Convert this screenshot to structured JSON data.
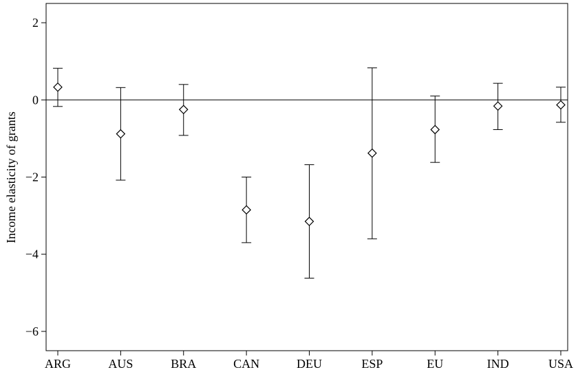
{
  "chart_data": {
    "type": "scatter",
    "title": "",
    "xlabel": "",
    "ylabel": "Income elasticity of grants",
    "categories": [
      "ARG",
      "AUS",
      "BRA",
      "CAN",
      "DEU",
      "ESP",
      "EU",
      "IND",
      "USA"
    ],
    "estimates": [
      0.33,
      -0.88,
      -0.25,
      -2.85,
      -3.15,
      -1.38,
      -0.77,
      -0.16,
      -0.13
    ],
    "ci_lower": [
      -0.17,
      -2.08,
      -0.92,
      -3.7,
      -4.62,
      -3.6,
      -1.62,
      -0.77,
      -0.58
    ],
    "ci_upper": [
      0.82,
      0.32,
      0.4,
      -2.0,
      -1.68,
      0.83,
      0.1,
      0.43,
      0.33
    ],
    "ylim": [
      -6.5,
      2.5
    ],
    "yticks": [
      2,
      0,
      -2,
      -4,
      -6
    ],
    "ytick_labels": [
      "2",
      "0",
      "−2",
      "−4",
      "−6"
    ],
    "reference_line": 0,
    "marker": "diamond-open",
    "grid": false,
    "legend": "none"
  }
}
